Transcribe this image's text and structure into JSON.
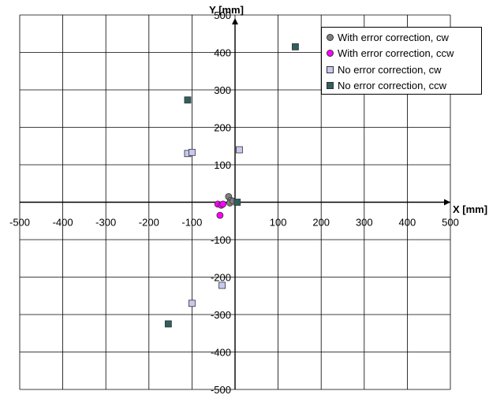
{
  "chart_data": {
    "type": "scatter",
    "xlabel": "X [mm]",
    "ylabel": "Y [mm]",
    "xlim": [
      -500,
      500
    ],
    "ylim": [
      -500,
      500
    ],
    "xticks": [
      -500,
      -400,
      -300,
      -200,
      -100,
      100,
      200,
      300,
      400,
      500
    ],
    "yticks": [
      -500,
      -400,
      -300,
      -200,
      -100,
      100,
      200,
      300,
      400,
      500
    ],
    "grid": true,
    "legend_position": "top-right",
    "series": [
      {
        "name": "With error correction, cw",
        "marker": "circle",
        "color": "#808080",
        "points": [
          [
            -15,
            15
          ],
          [
            -10,
            5
          ],
          [
            -12,
            -2
          ],
          [
            -5,
            3
          ]
        ]
      },
      {
        "name": "With error correction, ccw",
        "marker": "circle",
        "color": "#ff00ff",
        "points": [
          [
            -40,
            -5
          ],
          [
            -32,
            -8
          ],
          [
            -35,
            -35
          ],
          [
            -28,
            -5
          ]
        ]
      },
      {
        "name": "No error correction, cw",
        "marker": "square",
        "color": "#c8c8f0",
        "points": [
          [
            -110,
            130
          ],
          [
            -100,
            133
          ],
          [
            10,
            140
          ],
          [
            -100,
            -270
          ],
          [
            -30,
            -222
          ]
        ]
      },
      {
        "name": "No error correction, ccw",
        "marker": "square",
        "color": "#2f5f5f",
        "points": [
          [
            140,
            415
          ],
          [
            -110,
            273
          ],
          [
            5,
            0
          ],
          [
            -155,
            -325
          ]
        ]
      }
    ]
  }
}
